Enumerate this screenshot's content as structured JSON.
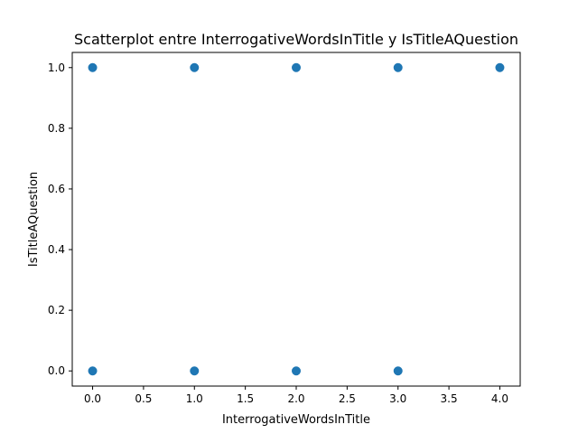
{
  "chart_data": {
    "type": "scatter",
    "title": "Scatterplot entre InterrogativeWordsInTitle y IsTitleAQuestion",
    "xlabel": "InterrogativeWordsInTitle",
    "ylabel": "IsTitleAQuestion",
    "xlim": [
      -0.2,
      4.2
    ],
    "ylim": [
      -0.05,
      1.05
    ],
    "x_ticks": [
      "0.0",
      "0.5",
      "1.0",
      "1.5",
      "2.0",
      "2.5",
      "3.0",
      "3.5",
      "4.0"
    ],
    "y_ticks": [
      "0.0",
      "0.2",
      "0.4",
      "0.6",
      "0.8",
      "1.0"
    ],
    "grid": false,
    "legend": "none",
    "marker_color": "#1f77b4",
    "points": [
      {
        "x": 0,
        "y": 1
      },
      {
        "x": 1,
        "y": 1
      },
      {
        "x": 2,
        "y": 1
      },
      {
        "x": 3,
        "y": 1
      },
      {
        "x": 4,
        "y": 1
      },
      {
        "x": 0,
        "y": 0
      },
      {
        "x": 1,
        "y": 0
      },
      {
        "x": 2,
        "y": 0
      },
      {
        "x": 3,
        "y": 0
      }
    ]
  }
}
